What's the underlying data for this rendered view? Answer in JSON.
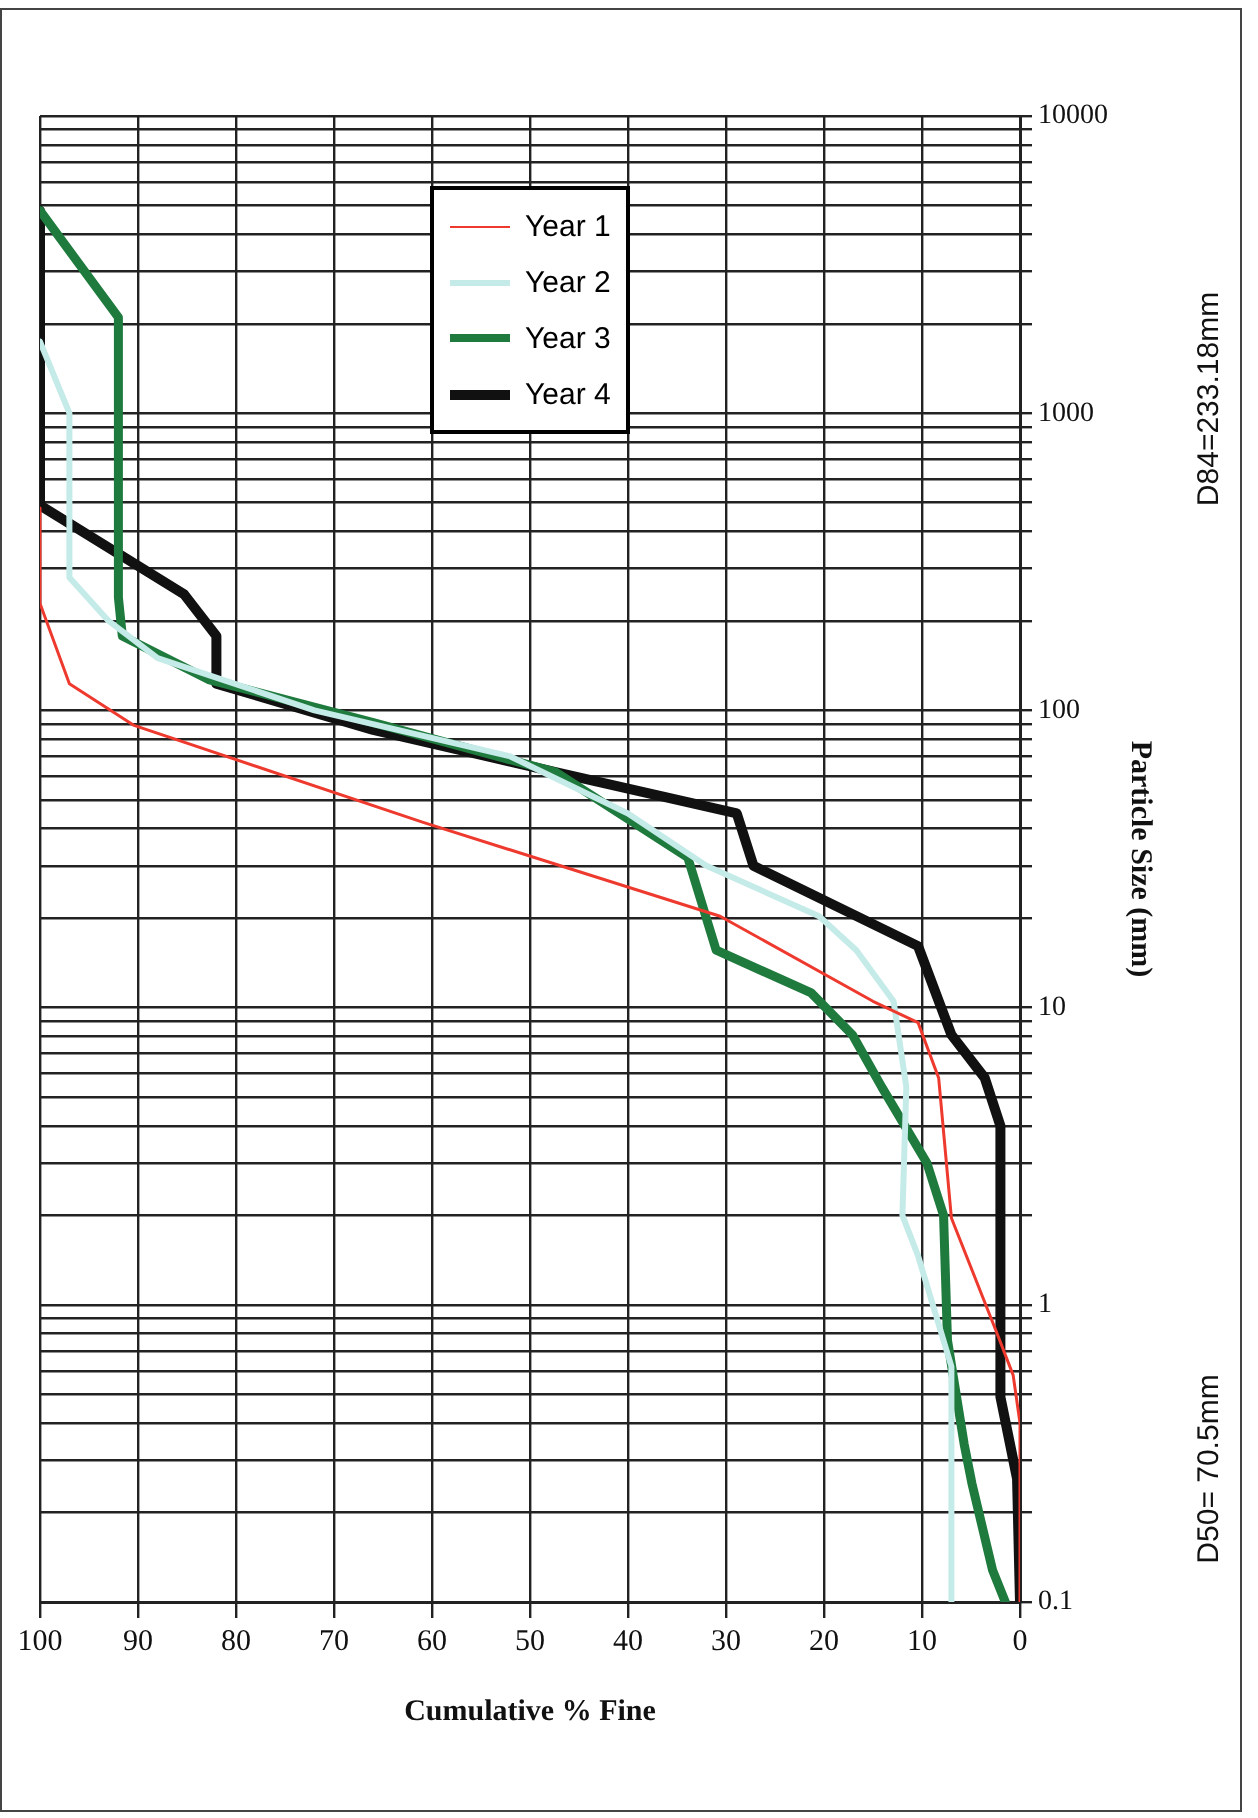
{
  "chart_data": {
    "type": "line",
    "xlabel": "Cumulative % Fine",
    "ylabel": "Particle Size (mm)",
    "log": "y",
    "ylim": [
      0.1,
      10000
    ],
    "yticks": [
      0.1,
      1,
      10,
      100,
      1000,
      10000
    ],
    "xlim": [
      100,
      0
    ],
    "xticks": [
      100,
      90,
      80,
      70,
      60,
      50,
      40,
      30,
      20,
      10,
      0
    ],
    "grid": true,
    "legend": "top",
    "marker": "none",
    "line_style": "solid",
    "annotations": [
      "D50= 70.5mm",
      "D84=233.18mm"
    ],
    "series": [
      {
        "name": "Year 1",
        "color": "#ee3a2e",
        "x": [
          0,
          0,
          0.7,
          2.4,
          7,
          8.3,
          10.4,
          15,
          30.6,
          60.9,
          90.4,
          97,
          100,
          100
        ],
        "values": [
          0.1,
          0.4,
          0.58,
          0.81,
          1.96,
          5.8,
          8.9,
          10.5,
          20.3,
          42,
          89,
          123,
          229,
          480
        ]
      },
      {
        "name": "Year 2",
        "color": "#c4ebe8",
        "x": [
          7,
          7,
          10.4,
          12,
          11.6,
          12.9,
          16.7,
          20.5,
          32,
          40,
          52,
          72,
          88,
          93,
          97,
          97,
          100
        ],
        "values": [
          0.1,
          0.62,
          1.46,
          2,
          5.4,
          10.5,
          15.6,
          20.3,
          30,
          45,
          70,
          100,
          150,
          200,
          280,
          1000,
          1740
        ]
      },
      {
        "name": "Year 3",
        "color": "#1f7a3e",
        "x": [
          1.5,
          2.8,
          4.9,
          5.7,
          7.4,
          7.8,
          9.5,
          14.1,
          17.1,
          21.3,
          31,
          33.9,
          47.4,
          66,
          82.8,
          91.6,
          92,
          92,
          100
        ],
        "values": [
          0.1,
          0.128,
          0.25,
          0.34,
          0.76,
          2,
          3,
          5.4,
          8.1,
          11.2,
          15.6,
          32,
          62,
          91,
          127,
          178,
          240,
          2100,
          4800
        ]
      },
      {
        "name": "Year 4",
        "color": "#111111",
        "x": [
          0,
          0.3,
          2,
          2,
          3.6,
          7,
          10.4,
          27.2,
          28.9,
          47.4,
          66,
          82,
          82,
          85.3,
          100,
          100
        ],
        "values": [
          0.1,
          0.26,
          0.49,
          4,
          5.8,
          8.1,
          16.1,
          30,
          45,
          62,
          86,
          123,
          178,
          246,
          490,
          4800
        ]
      }
    ]
  }
}
